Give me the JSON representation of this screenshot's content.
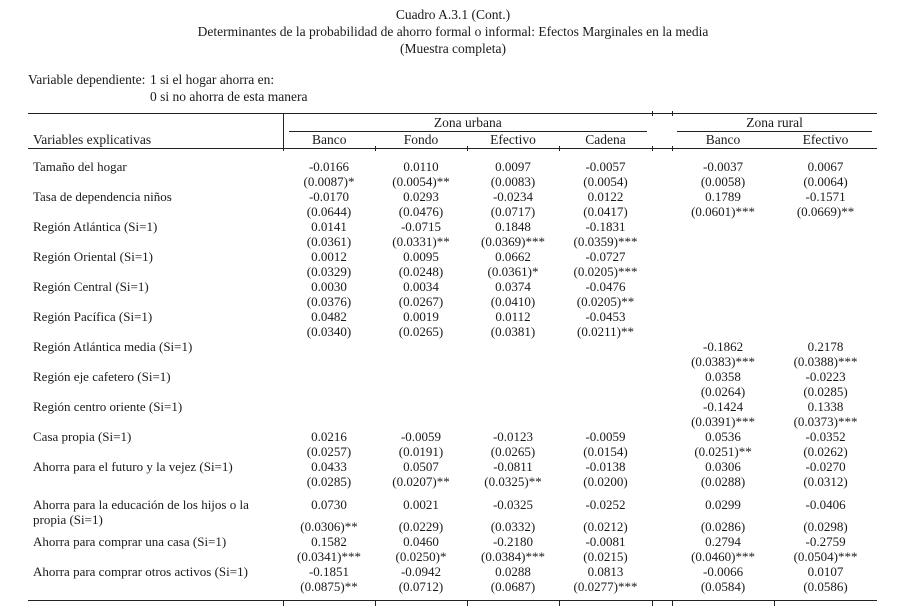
{
  "header": {
    "title_line1": "Cuadro A.3.1 (Cont.)",
    "title_line2": "Determinantes de la probabilidad de ahorro formal o informal: Efectos Marginales en la media",
    "title_line3": "(Muestra completa)",
    "depvar_label": "Variable dependiente:",
    "depvar_line1": "1 si el hogar ahorra en:",
    "depvar_line2": "0 si no ahorra de esta manera"
  },
  "table": {
    "left_header": "Variables explicativas",
    "groups": [
      {
        "label": "Zona urbana",
        "columns": [
          "Banco",
          "Fondo",
          "Efectivo",
          "Cadena"
        ]
      },
      {
        "label": "Zona rural",
        "columns": [
          "Banco",
          "Efectivo"
        ]
      }
    ],
    "rows": [
      {
        "label": "Tamaño del hogar",
        "values": [
          "-0.0166",
          "0.0110",
          "0.0097",
          "-0.0057",
          "-0.0037",
          "0.0067"
        ],
        "ses": [
          "(0.0087)*",
          "(0.0054)**",
          "(0.0083)",
          "(0.0054)",
          "(0.0058)",
          "(0.0064)"
        ]
      },
      {
        "label": "Tasa de dependencia niños",
        "values": [
          "-0.0170",
          "0.0293",
          "-0.0234",
          "0.0122",
          "0.1789",
          "-0.1571"
        ],
        "ses": [
          "(0.0644)",
          "(0.0476)",
          "(0.0717)",
          "(0.0417)",
          "(0.0601)***",
          "(0.0669)**"
        ]
      },
      {
        "label": "Región Atlántica (Si=1)",
        "values": [
          "0.0141",
          "-0.0715",
          "0.1848",
          "-0.1831",
          "",
          ""
        ],
        "ses": [
          "(0.0361)",
          "(0.0331)**",
          "(0.0369)***",
          "(0.0359)***",
          "",
          ""
        ]
      },
      {
        "label": "Región Oriental (Si=1)",
        "values": [
          "0.0012",
          "0.0095",
          "0.0662",
          "-0.0727",
          "",
          ""
        ],
        "ses": [
          "(0.0329)",
          "(0.0248)",
          "(0.0361)*",
          "(0.0205)***",
          "",
          ""
        ]
      },
      {
        "label": "Región Central (Si=1)",
        "values": [
          "0.0030",
          "0.0034",
          "0.0374",
          "-0.0476",
          "",
          ""
        ],
        "ses": [
          "(0.0376)",
          "(0.0267)",
          "(0.0410)",
          "(0.0205)**",
          "",
          ""
        ]
      },
      {
        "label": "Región Pacífica (Si=1)",
        "values": [
          "0.0482",
          "0.0019",
          "0.0112",
          "-0.0453",
          "",
          ""
        ],
        "ses": [
          "(0.0340)",
          "(0.0265)",
          "(0.0381)",
          "(0.0211)**",
          "",
          ""
        ]
      },
      {
        "label": "Región Atlántica media (Si=1)",
        "values": [
          "",
          "",
          "",
          "",
          "-0.1862",
          "0.2178"
        ],
        "ses": [
          "",
          "",
          "",
          "",
          "(0.0383)***",
          "(0.0388)***"
        ]
      },
      {
        "label": "Región eje cafetero (Si=1)",
        "values": [
          "",
          "",
          "",
          "",
          "0.0358",
          "-0.0223"
        ],
        "ses": [
          "",
          "",
          "",
          "",
          "(0.0264)",
          "(0.0285)"
        ]
      },
      {
        "label": "Región centro oriente (Si=1)",
        "values": [
          "",
          "",
          "",
          "",
          "-0.1424",
          "0.1338"
        ],
        "ses": [
          "",
          "",
          "",
          "",
          "(0.0391)***",
          "(0.0373)***"
        ]
      },
      {
        "label": "Casa propia (Si=1)",
        "values": [
          "0.0216",
          "-0.0059",
          "-0.0123",
          "-0.0059",
          "0.0536",
          "-0.0352"
        ],
        "ses": [
          "(0.0257)",
          "(0.0191)",
          "(0.0265)",
          "(0.0154)",
          "(0.0251)**",
          "(0.0262)"
        ]
      },
      {
        "label": "Ahorra para el futuro y la vejez (Si=1)",
        "values": [
          "0.0433",
          "0.0507",
          "-0.0811",
          "-0.0138",
          "0.0306",
          "-0.0270"
        ],
        "ses": [
          "(0.0285)",
          "(0.0207)**",
          "(0.0325)**",
          "(0.0200)",
          "(0.0288)",
          "(0.0312)"
        ]
      },
      {
        "label": "Ahorra para la educación de los hijos o la propia (Si=1)",
        "values": [
          "0.0730",
          "0.0021",
          "-0.0325",
          "-0.0252",
          "0.0299",
          "-0.0406"
        ],
        "ses": [
          "(0.0306)**",
          "(0.0229)",
          "(0.0332)",
          "(0.0212)",
          "(0.0286)",
          "(0.0298)"
        ]
      },
      {
        "label": "Ahorra para comprar una casa (Si=1)",
        "values": [
          "0.1582",
          "0.0460",
          "-0.2180",
          "-0.0081",
          "0.2794",
          "-0.2759"
        ],
        "ses": [
          "(0.0341)***",
          "(0.0250)*",
          "(0.0384)***",
          "(0.0215)",
          "(0.0460)***",
          "(0.0504)***"
        ]
      },
      {
        "label": "Ahorra para comprar otros activos (Si=1)",
        "values": [
          "-0.1851",
          "-0.0942",
          "0.0288",
          "0.0813",
          "-0.0066",
          "0.0107"
        ],
        "ses": [
          "(0.0875)**",
          "(0.0712)",
          "(0.0687)",
          "(0.0277)***",
          "(0.0584)",
          "(0.0586)"
        ]
      }
    ]
  }
}
